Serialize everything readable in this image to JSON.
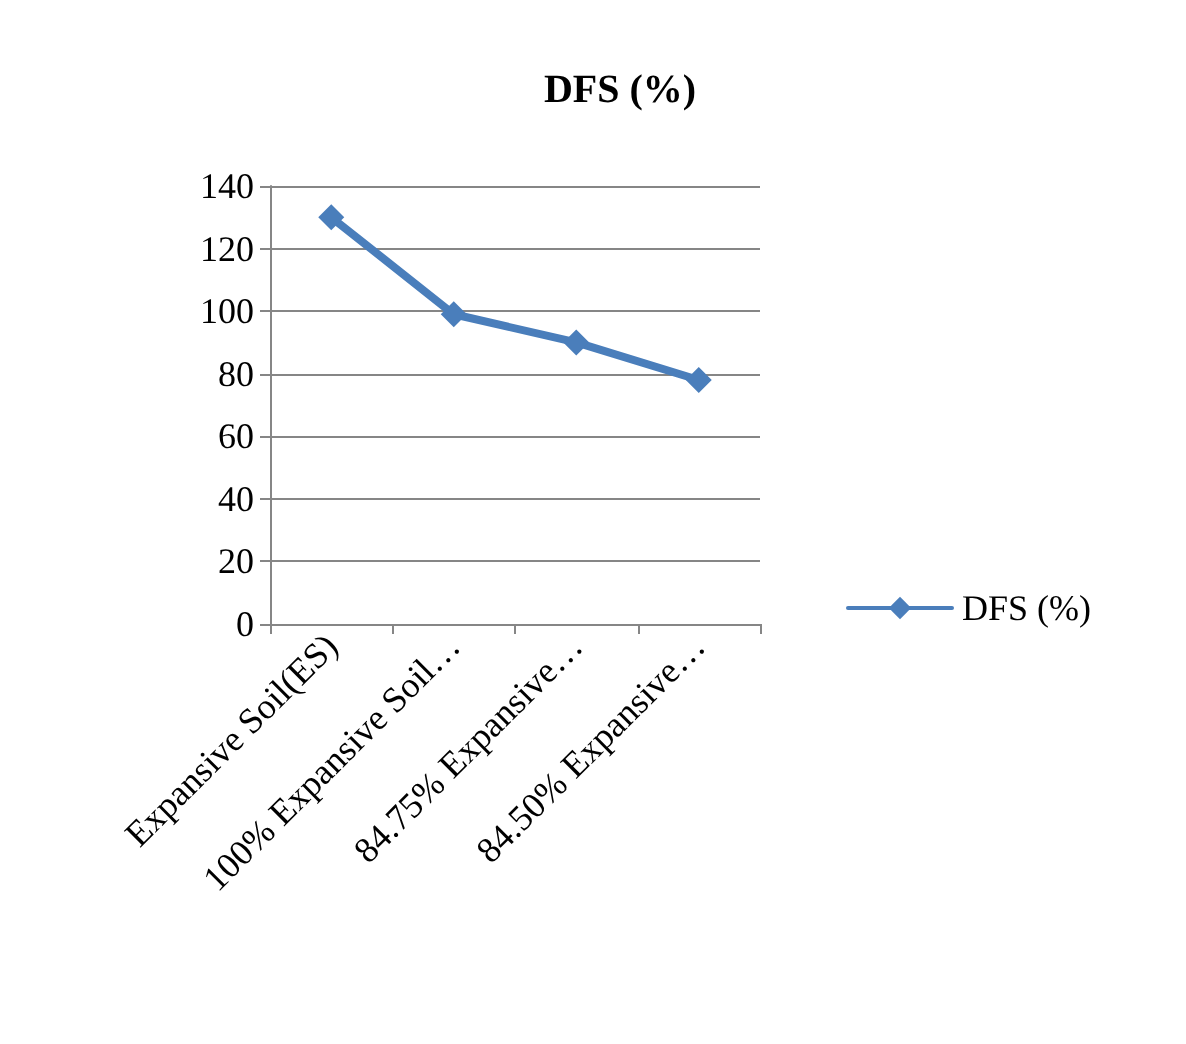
{
  "chart_data": {
    "type": "line",
    "title": "DFS (%)",
    "categories": [
      "Expansive Soil(ES)",
      "100% Expansive Soil…",
      "84.75% Expansive…",
      "84.50% Expansive…"
    ],
    "series": [
      {
        "name": "DFS (%)",
        "color": "#4a7ebb",
        "values": [
          130,
          99,
          90,
          78
        ]
      }
    ],
    "ylim": [
      0,
      140
    ],
    "yticks": [
      0,
      20,
      40,
      60,
      80,
      100,
      120,
      140
    ],
    "grid": "y",
    "legend": "right",
    "marker": "diamond",
    "line_style": "solid"
  }
}
